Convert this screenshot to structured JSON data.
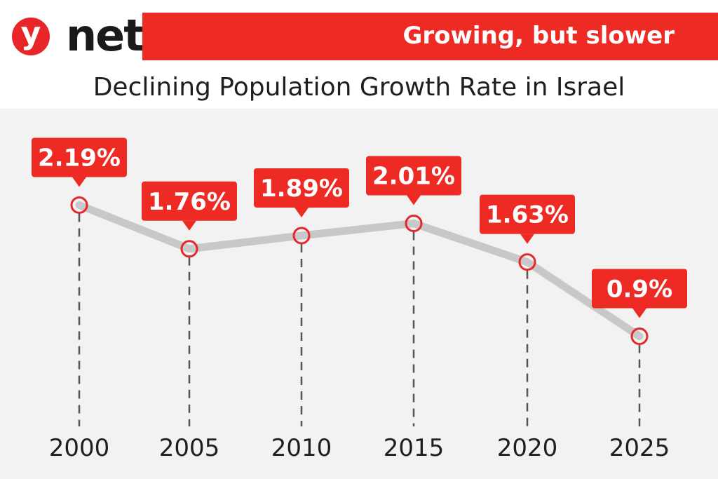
{
  "brand": {
    "logo_letter": "y",
    "logo_text": "net"
  },
  "banner": {
    "text": "Growing, but slower",
    "color": "#ee2a24"
  },
  "chart_data": {
    "type": "line",
    "title": "Declining Population Growth Rate in Israel",
    "categories": [
      "2000",
      "2005",
      "2010",
      "2015",
      "2020",
      "2025"
    ],
    "values": [
      2.19,
      1.76,
      1.89,
      2.01,
      1.63,
      0.9
    ],
    "data_labels": [
      "2.19%",
      "1.76%",
      "1.89%",
      "2.01%",
      "1.63%",
      "0.9%"
    ],
    "ylim": [
      0,
      2.4
    ],
    "grid": false,
    "line_color": "#c8c8c8",
    "marker_color": "#e8262a",
    "label_color": "#ee2a24"
  }
}
